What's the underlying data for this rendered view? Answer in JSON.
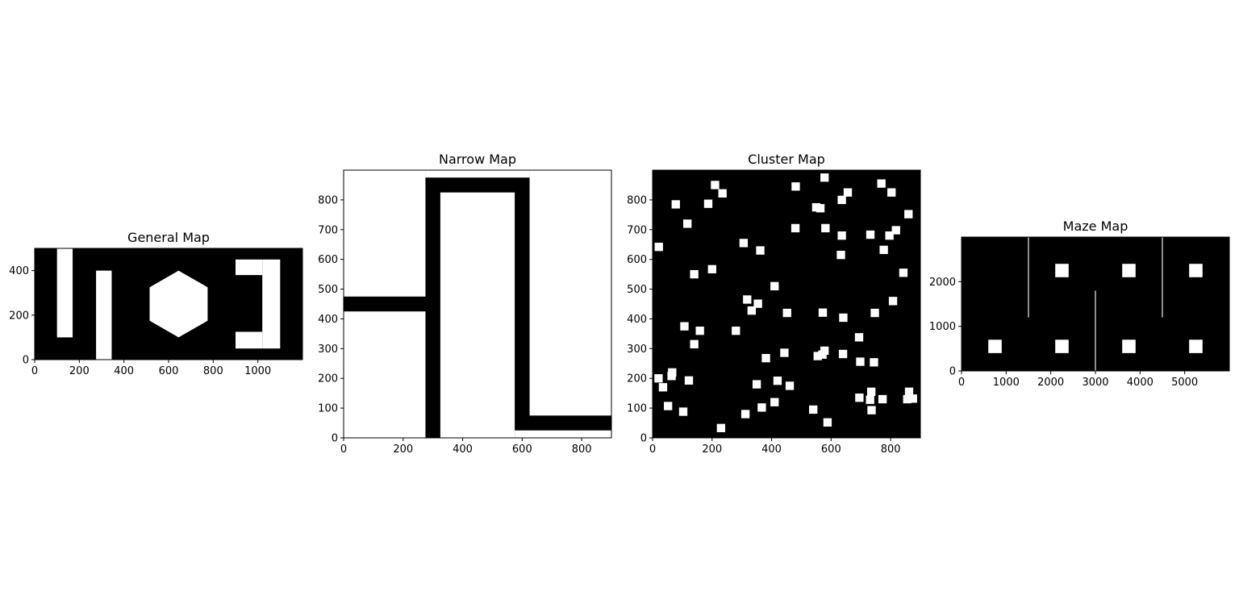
{
  "colors": {
    "obstacle": "#ffffff",
    "free": "#000000",
    "axis": "#000000",
    "background": "#ffffff"
  },
  "chart_data": [
    {
      "type": "heatmap",
      "title": "General Map",
      "xlim": [
        0,
        1200
      ],
      "ylim": [
        0,
        500
      ],
      "xticks": [
        0,
        200,
        400,
        600,
        800,
        1000
      ],
      "yticks": [
        0,
        200,
        400
      ],
      "background": "black",
      "rects": [
        [
          100,
          100,
          170,
          500
        ],
        [
          275,
          0,
          345,
          400
        ],
        [
          900,
          380,
          1020,
          450
        ],
        [
          900,
          50,
          1020,
          125
        ],
        [
          1020,
          50,
          1100,
          450
        ]
      ],
      "polygons": [
        [
          [
            645,
            400
          ],
          [
            775,
            325
          ],
          [
            775,
            175
          ],
          [
            645,
            100
          ],
          [
            515,
            175
          ],
          [
            515,
            325
          ]
        ]
      ]
    },
    {
      "type": "heatmap",
      "title": "Narrow Map",
      "xlim": [
        0,
        900
      ],
      "ylim": [
        0,
        900
      ],
      "xticks": [
        0,
        200,
        400,
        600,
        800
      ],
      "yticks": [
        0,
        100,
        200,
        300,
        400,
        500,
        600,
        700,
        800
      ],
      "background": "black",
      "rects": [
        [
          0,
          475,
          275,
          900
        ],
        [
          0,
          0,
          275,
          425
        ],
        [
          275,
          875,
          625,
          900
        ],
        [
          325,
          0,
          575,
          825
        ],
        [
          625,
          75,
          900,
          900
        ],
        [
          575,
          0,
          900,
          25
        ]
      ],
      "polygons": []
    },
    {
      "type": "heatmap",
      "title": "Cluster Map",
      "xlim": [
        0,
        900
      ],
      "ylim": [
        0,
        900
      ],
      "xticks": [
        0,
        200,
        400,
        600,
        800
      ],
      "yticks": [
        0,
        100,
        200,
        300,
        400,
        500,
        600,
        700,
        800
      ],
      "background": "black",
      "square_size": 28,
      "square_centers": [
        [
          578,
          875
        ],
        [
          210,
          850
        ],
        [
          481,
          845
        ],
        [
          769,
          855
        ],
        [
          235,
          822
        ],
        [
          656,
          825
        ],
        [
          803,
          825
        ],
        [
          636,
          800
        ],
        [
          78,
          785
        ],
        [
          187,
          787
        ],
        [
          550,
          775
        ],
        [
          564,
          772
        ],
        [
          860,
          752
        ],
        [
          117,
          720
        ],
        [
          480,
          705
        ],
        [
          581,
          705
        ],
        [
          818,
          698
        ],
        [
          636,
          680
        ],
        [
          732,
          683
        ],
        [
          796,
          680
        ],
        [
          306,
          655
        ],
        [
          21,
          642
        ],
        [
          362,
          630
        ],
        [
          777,
          632
        ],
        [
          633,
          615
        ],
        [
          140,
          550
        ],
        [
          200,
          567
        ],
        [
          843,
          555
        ],
        [
          410,
          510
        ],
        [
          318,
          465
        ],
        [
          354,
          451
        ],
        [
          333,
          428
        ],
        [
          452,
          420
        ],
        [
          572,
          421
        ],
        [
          808,
          460
        ],
        [
          747,
          420
        ],
        [
          641,
          404
        ],
        [
          107,
          375
        ],
        [
          159,
          360
        ],
        [
          280,
          360
        ],
        [
          694,
          338
        ],
        [
          140,
          315
        ],
        [
          578,
          293
        ],
        [
          571,
          280
        ],
        [
          555,
          275
        ],
        [
          640,
          282
        ],
        [
          443,
          286
        ],
        [
          381,
          268
        ],
        [
          698,
          256
        ],
        [
          744,
          254
        ],
        [
          66,
          220
        ],
        [
          64,
          208
        ],
        [
          20,
          200
        ],
        [
          122,
          193
        ],
        [
          420,
          192
        ],
        [
          350,
          180
        ],
        [
          461,
          175
        ],
        [
          35,
          170
        ],
        [
          735,
          155
        ],
        [
          862,
          155
        ],
        [
          695,
          135
        ],
        [
          731,
          128
        ],
        [
          773,
          130
        ],
        [
          856,
          130
        ],
        [
          875,
          132
        ],
        [
          410,
          120
        ],
        [
          52,
          107
        ],
        [
          367,
          102
        ],
        [
          103,
          88
        ],
        [
          540,
          95
        ],
        [
          736,
          93
        ],
        [
          312,
          80
        ],
        [
          588,
          52
        ],
        [
          230,
          33
        ]
      ],
      "rects": [],
      "polygons": []
    },
    {
      "type": "heatmap",
      "title": "Maze Map",
      "xlim": [
        0,
        6000
      ],
      "ylim": [
        0,
        3000
      ],
      "xticks": [
        0,
        1000,
        2000,
        3000,
        4000,
        5000
      ],
      "yticks": [
        0,
        1000,
        2000
      ],
      "background": "black",
      "rects": [
        [
          1490,
          1200,
          1510,
          3000
        ],
        [
          2990,
          0,
          3010,
          1800
        ],
        [
          4490,
          1200,
          4510,
          3000
        ],
        [
          600,
          400,
          900,
          700
        ],
        [
          2100,
          400,
          2400,
          700
        ],
        [
          3600,
          400,
          3900,
          700
        ],
        [
          5100,
          400,
          5400,
          700
        ],
        [
          2100,
          2100,
          2400,
          2400
        ],
        [
          3600,
          2100,
          3900,
          2400
        ],
        [
          5100,
          2100,
          5400,
          2400
        ]
      ],
      "polygons": []
    }
  ]
}
